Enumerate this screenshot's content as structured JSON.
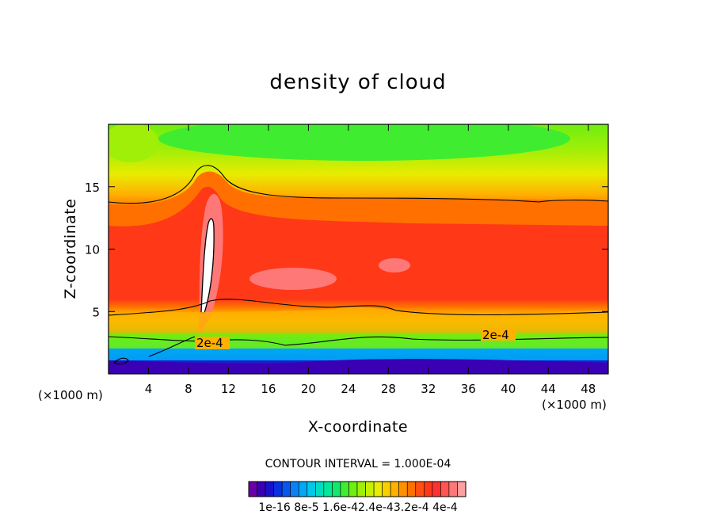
{
  "chart_data": {
    "type": "filled-contour",
    "title": "density of cloud",
    "xlabel": "X-coordinate",
    "ylabel": "Z-coordinate",
    "x_unit_label": "(×1000 m)",
    "x_unit_label_right": "(×1000 m)",
    "xlim": [
      0,
      50
    ],
    "ylim": [
      0,
      20
    ],
    "x_ticks": [
      4,
      8,
      12,
      16,
      20,
      24,
      28,
      32,
      36,
      40,
      44,
      48
    ],
    "y_ticks": [
      5,
      10,
      15
    ],
    "contour_interval_text": "CONTOUR INTERVAL = 1.000E-04",
    "contour_line_labels": [
      "2e-4",
      "2e-4"
    ],
    "colorbar_labels": [
      "1e-16",
      "8e-5",
      "1.6e-4",
      "2.4e-4",
      "3.2e-4",
      "4e-4"
    ],
    "colorbar_label_text": "1e-16  8e-5  1.6e-42.4e-43.2e-4  4e-4",
    "colorbar_colors": [
      "#6a00a8",
      "#3a00b4",
      "#1a10c8",
      "#0a30e0",
      "#0a55ef",
      "#0a80f5",
      "#00a8f5",
      "#00c8e8",
      "#00dcc0",
      "#00e89a",
      "#10e870",
      "#40ec30",
      "#70ee10",
      "#a0ef08",
      "#c8f000",
      "#e8ec00",
      "#f8d000",
      "#ffb000",
      "#ff9000",
      "#ff7000",
      "#ff5010",
      "#ff3818",
      "#ff3030",
      "#ff5555",
      "#ff7878",
      "#ffa0a0"
    ]
  }
}
